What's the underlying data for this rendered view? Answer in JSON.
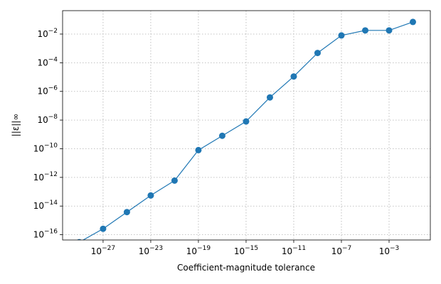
{
  "chart_data": {
    "type": "line",
    "x_label": "Coefficient-magnitude tolerance",
    "y_label": "||ε||∞",
    "x_log": true,
    "y_log": true,
    "grid": true,
    "x": [
      1e-31,
      1e-29,
      1e-27,
      1e-25,
      1e-23,
      1e-21,
      1e-19,
      1e-17,
      1e-15,
      1e-13,
      1e-11,
      1e-09,
      1e-07,
      1e-05,
      0.001,
      0.1
    ],
    "series": [
      {
        "name": "error",
        "color": "#1f77b4",
        "values": [
          2e-18,
          3e-17,
          2.6e-16,
          3.8e-15,
          5.5e-14,
          6e-13,
          8e-11,
          8e-10,
          8e-09,
          3.8e-07,
          1.1e-05,
          0.00048,
          0.008,
          0.018,
          0.018,
          0.07
        ]
      }
    ],
    "xlim": [
      4e-31,
      2.9
    ],
    "ylim": [
      4.3e-17,
      0.43
    ],
    "xticks": [
      {
        "value": 1e-27,
        "label": "10^−27"
      },
      {
        "value": 1e-23,
        "label": "10^−23"
      },
      {
        "value": 1e-19,
        "label": "10^−19"
      },
      {
        "value": 1e-15,
        "label": "10^−15"
      },
      {
        "value": 1e-11,
        "label": "10^−11"
      },
      {
        "value": 1e-07,
        "label": "10^−7"
      },
      {
        "value": 0.001,
        "label": "10^−3"
      }
    ],
    "yticks": [
      {
        "value": 1e-16,
        "label": "10^−16"
      },
      {
        "value": 1e-14,
        "label": "10^−14"
      },
      {
        "value": 1e-12,
        "label": "10^−12"
      },
      {
        "value": 1e-10,
        "label": "10^−10"
      },
      {
        "value": 1e-08,
        "label": "10^−8"
      },
      {
        "value": 1e-06,
        "label": "10^−6"
      },
      {
        "value": 0.0001,
        "label": "10^−4"
      },
      {
        "value": 0.01,
        "label": "10^−2"
      }
    ]
  }
}
